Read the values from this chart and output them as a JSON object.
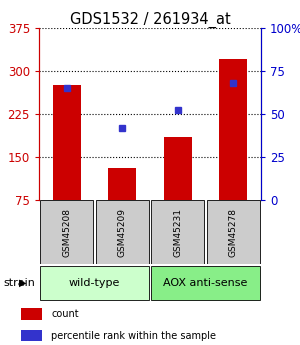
{
  "title": "GDS1532 / 261934_at",
  "samples": [
    "GSM45208",
    "GSM45209",
    "GSM45231",
    "GSM45278"
  ],
  "counts": [
    275,
    130,
    185,
    320
  ],
  "percentiles": [
    65,
    42,
    52,
    68
  ],
  "ylim_left": [
    75,
    375
  ],
  "ylim_right": [
    0,
    100
  ],
  "yticks_left": [
    75,
    150,
    225,
    300,
    375
  ],
  "yticks_right": [
    0,
    25,
    50,
    75,
    100
  ],
  "ytick_labels_right": [
    "0",
    "25",
    "50",
    "75",
    "100%"
  ],
  "bar_color": "#cc0000",
  "dot_color": "#3333cc",
  "groups": [
    {
      "label": "wild-type",
      "color": "#ccffcc",
      "start": 0,
      "end": 1
    },
    {
      "label": "AOX anti-sense",
      "color": "#88ee88",
      "start": 2,
      "end": 3
    }
  ],
  "group_label": "strain",
  "legend_items": [
    {
      "color": "#cc0000",
      "label": "count"
    },
    {
      "color": "#3333cc",
      "label": "percentile rank within the sample"
    }
  ],
  "title_fontsize": 10.5,
  "tick_fontsize": 8.5,
  "sample_box_color": "#cccccc",
  "fig_bg": "#ffffff"
}
